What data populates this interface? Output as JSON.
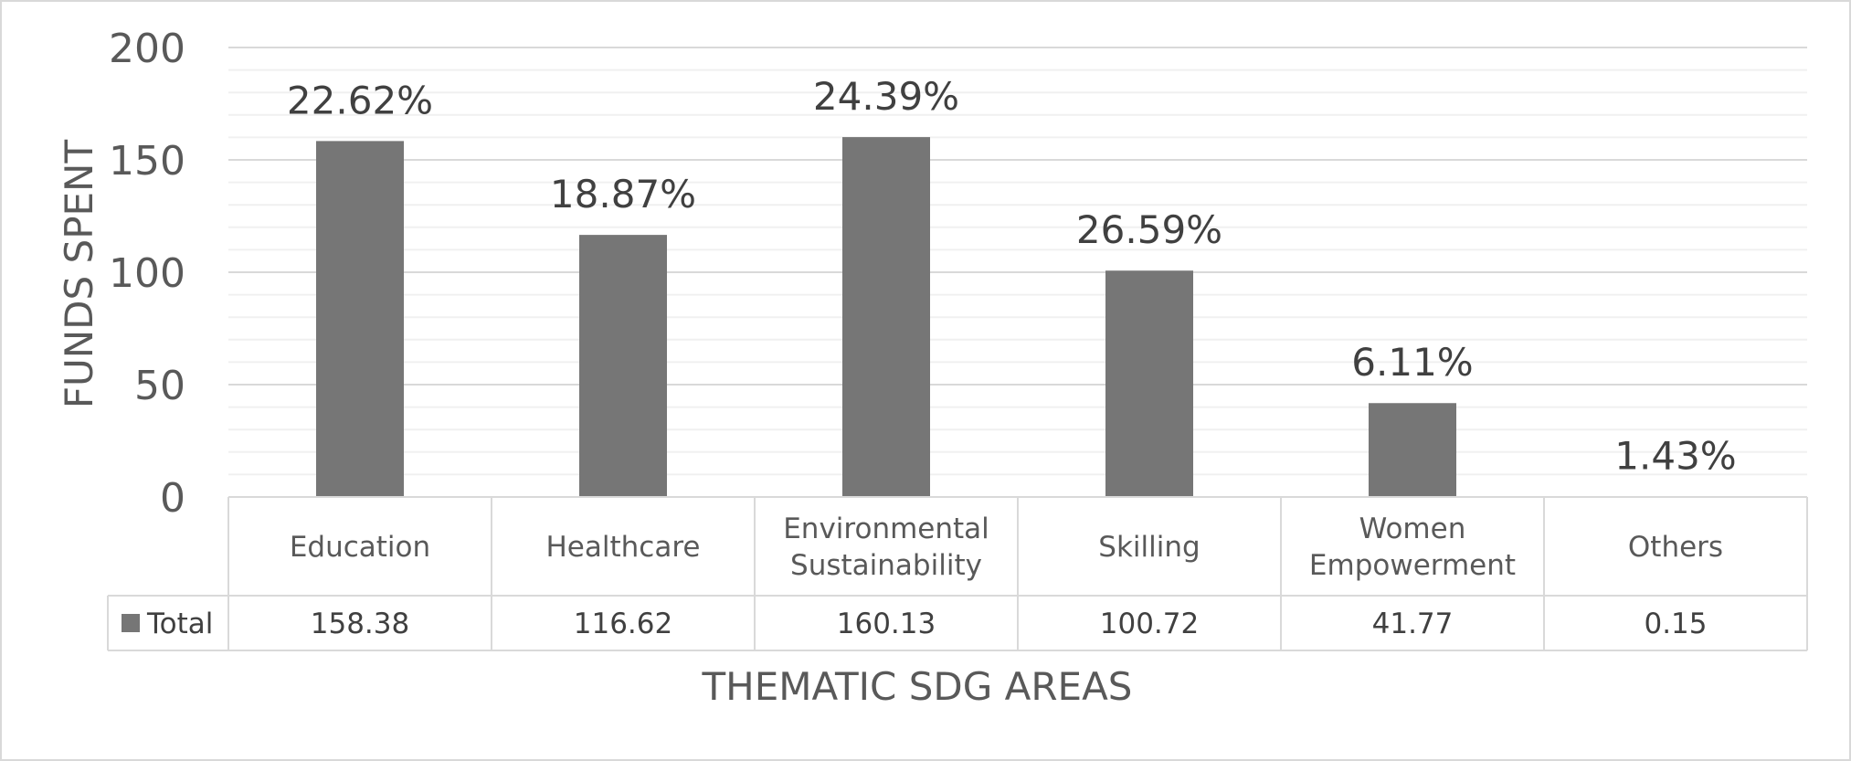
{
  "chart_data": {
    "type": "bar",
    "categories": [
      "Education",
      "Healthcare",
      "Environmental Sustainability",
      "Skilling",
      "Women Empowerment",
      "Others"
    ],
    "category_lines": [
      [
        "Education"
      ],
      [
        "Healthcare"
      ],
      [
        "Environmental",
        "Sustainability"
      ],
      [
        "Skilling"
      ],
      [
        "Women",
        "Empowerment"
      ],
      [
        "Others"
      ]
    ],
    "series": [
      {
        "name": "Total",
        "values": [
          158.38,
          116.62,
          160.13,
          100.72,
          41.77,
          0.15
        ],
        "value_labels": [
          "158.38",
          "116.62",
          "160.13",
          "100.72",
          "41.77",
          "0.15"
        ],
        "data_labels": [
          "22.62%",
          "18.87%",
          "24.39%",
          "26.59%",
          "6.11%",
          "1.43%"
        ]
      }
    ],
    "title": "",
    "xlabel": "THEMATIC SDG AREAS",
    "ylabel": "FUNDS SPENT",
    "ylim": [
      0,
      200
    ],
    "yticks": [
      0,
      50,
      100,
      150,
      200
    ],
    "minor_gridlines": true,
    "data_table": true,
    "legend": "in data table",
    "bar_color": "#767676",
    "grid_color": "#d9d9d9",
    "minor_grid_color": "#f0f0f0",
    "border_color": "#d9d9d9"
  }
}
